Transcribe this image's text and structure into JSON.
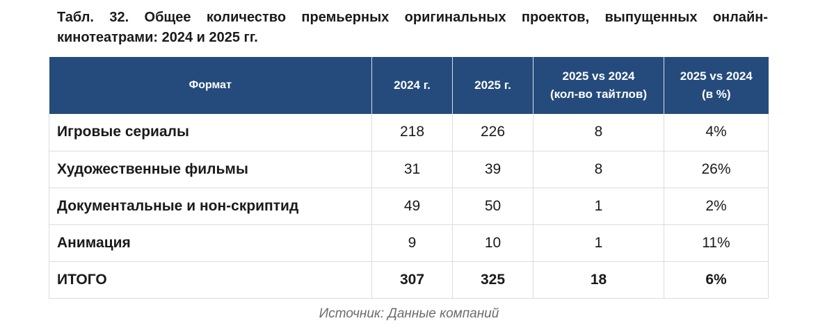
{
  "caption": "Табл. 32. Общее количество премьерных оригинальных проектов, выпущенных онлайн-кинотеатрами: 2024 и 2025 гг.",
  "table": {
    "headers": [
      {
        "line1": "Формат",
        "line2": ""
      },
      {
        "line1": "2024 г.",
        "line2": ""
      },
      {
        "line1": "2025 г.",
        "line2": ""
      },
      {
        "line1": "2025 vs 2024",
        "line2": "(кол-во тайтлов)"
      },
      {
        "line1": "2025 vs 2024",
        "line2": "(в %)"
      }
    ],
    "rows": [
      {
        "format": "Игровые сериалы",
        "y2024": "218",
        "y2025": "226",
        "diff_titles": "8",
        "diff_pct": "4%"
      },
      {
        "format": "Художественные фильмы",
        "y2024": "31",
        "y2025": "39",
        "diff_titles": "8",
        "diff_pct": "26%"
      },
      {
        "format": "Документальные и нон-скриптид",
        "y2024": "49",
        "y2025": "50",
        "diff_titles": "1",
        "diff_pct": "2%"
      },
      {
        "format": "Анимация",
        "y2024": "9",
        "y2025": "10",
        "diff_titles": "1",
        "diff_pct": "11%"
      }
    ],
    "total": {
      "format": "ИТОГО",
      "y2024": "307",
      "y2025": "325",
      "diff_titles": "18",
      "diff_pct": "6%"
    }
  },
  "source": "Источник: Данные компаний",
  "colors": {
    "header_bg": "#244b7c",
    "header_text": "#ffffff",
    "source_text": "#6b6b6b"
  }
}
